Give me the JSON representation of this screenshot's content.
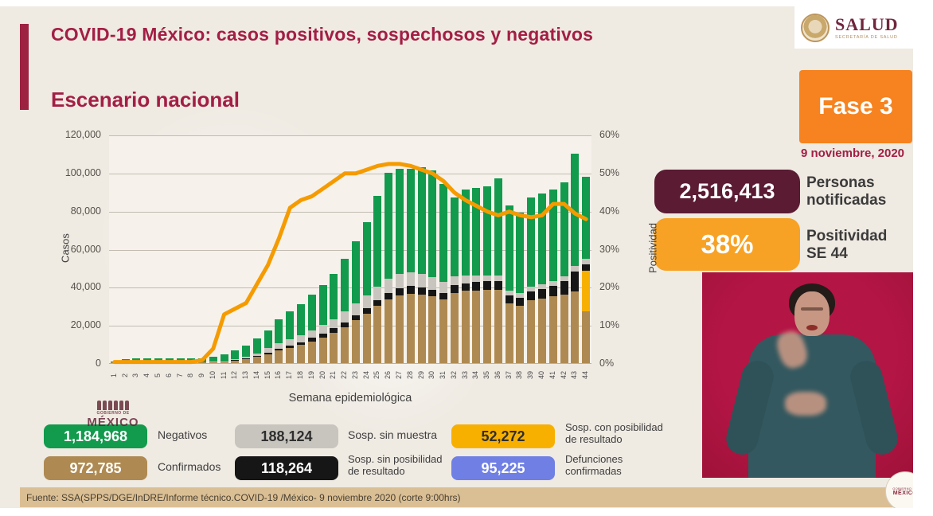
{
  "header": {
    "title": "COVID-19 México: casos positivos, sospechosos y negativos",
    "subtitle": "Escenario nacional"
  },
  "logo": {
    "title": "SALUD",
    "subtitle": "SECRETARÍA DE SALUD"
  },
  "phase": {
    "label": "Fase 3",
    "date": "9 noviembre, 2020",
    "color": "#F6831F"
  },
  "stats": {
    "notified": {
      "value": "2,516,413",
      "label": "Personas\nnotificadas",
      "color": "#5A1B33"
    },
    "positivity": {
      "value": "38%",
      "label": "Positividad\nSE 44",
      "color": "#F7A224"
    }
  },
  "chart_data": {
    "type": "bar",
    "stacked": true,
    "title": "Escenario nacional",
    "xlabel": "Semana epidemiológica",
    "ylabel_left": "Casos",
    "ylabel_right": "Positividad",
    "ylim_left": [
      0,
      120000
    ],
    "ylim_right_pct": [
      0,
      60
    ],
    "yticks_left": [
      "0",
      "20,000",
      "40,000",
      "60,000",
      "80,000",
      "100,000",
      "120,000"
    ],
    "yticks_right": [
      "0%",
      "10%",
      "20%",
      "30%",
      "40%",
      "50%",
      "60%"
    ],
    "grid": true,
    "categories": [
      "1",
      "2",
      "3",
      "4",
      "5",
      "6",
      "7",
      "8",
      "9",
      "10",
      "11",
      "12",
      "13",
      "14",
      "15",
      "16",
      "17",
      "18",
      "19",
      "20",
      "21",
      "22",
      "23",
      "24",
      "25",
      "26",
      "27",
      "28",
      "29",
      "30",
      "31",
      "32",
      "33",
      "34",
      "35",
      "36",
      "37",
      "38",
      "39",
      "40",
      "41",
      "42",
      "43",
      "44"
    ],
    "series": [
      {
        "name": "Confirmados",
        "color": "#AE8A52",
        "values": [
          100,
          100,
          150,
          150,
          150,
          100,
          100,
          100,
          150,
          300,
          600,
          1200,
          2000,
          3200,
          4800,
          6500,
          8000,
          9500,
          11500,
          13500,
          16000,
          19000,
          22500,
          26000,
          30000,
          33500,
          35500,
          36500,
          36000,
          35000,
          33500,
          37000,
          38000,
          38000,
          38500,
          38500,
          31500,
          30000,
          33000,
          34000,
          35000,
          36000,
          37500,
          27000
        ]
      },
      {
        "name": "Sosp. con posibilidad de resultado",
        "color": "#F8B000",
        "values": [
          0,
          0,
          0,
          0,
          0,
          0,
          0,
          0,
          0,
          0,
          0,
          0,
          0,
          0,
          0,
          0,
          0,
          0,
          0,
          0,
          0,
          0,
          0,
          0,
          0,
          0,
          0,
          0,
          0,
          0,
          0,
          0,
          0,
          0,
          0,
          0,
          0,
          0,
          0,
          0,
          0,
          0,
          0,
          21500
        ]
      },
      {
        "name": "Sosp. sin posibilidad de resultado",
        "color": "#161616",
        "values": [
          0,
          0,
          0,
          0,
          0,
          0,
          0,
          0,
          0,
          0,
          0,
          100,
          300,
          500,
          800,
          1000,
          1200,
          1500,
          1800,
          2000,
          2200,
          2500,
          2800,
          3000,
          3200,
          3500,
          3800,
          4000,
          3800,
          3500,
          3500,
          4000,
          4000,
          4500,
          4500,
          4500,
          4000,
          4500,
          4500,
          5000,
          5500,
          7000,
          10500,
          3500
        ]
      },
      {
        "name": "Sosp. sin muestra",
        "color": "#C8C4BE",
        "values": [
          0,
          0,
          0,
          0,
          0,
          0,
          0,
          0,
          0,
          200,
          300,
          600,
          1000,
          1500,
          2200,
          3000,
          3300,
          3500,
          4000,
          4500,
          5000,
          5500,
          6000,
          6500,
          7000,
          7500,
          7500,
          7000,
          7000,
          6500,
          5500,
          4500,
          4000,
          3500,
          3000,
          3000,
          2500,
          2500,
          2500,
          2500,
          2500,
          2500,
          3000,
          3000
        ]
      },
      {
        "name": "Negativos",
        "color": "#129A4D",
        "values": [
          400,
          1600,
          1900,
          2100,
          2100,
          1900,
          1900,
          1900,
          2000,
          2500,
          3600,
          4600,
          5700,
          7800,
          9200,
          12500,
          14500,
          16500,
          18700,
          21000,
          23800,
          28000,
          32700,
          38500,
          47800,
          55500,
          55200,
          54500,
          56200,
          56000,
          51500,
          41500,
          45000,
          46000,
          47000,
          51000,
          45000,
          42000,
          47000,
          47500,
          48000,
          49500,
          59000,
          43000
        ]
      }
    ],
    "line_series": {
      "name": "Positividad",
      "color": "#F59B00",
      "values_pct": [
        0.5,
        0.5,
        0.5,
        0.5,
        0.5,
        0.5,
        0.5,
        0.5,
        1,
        4,
        13,
        14.5,
        16,
        21,
        26,
        33,
        41,
        43,
        44,
        46,
        48,
        50,
        50,
        51,
        52,
        52.5,
        52.5,
        52,
        51,
        50,
        48,
        45,
        43,
        41.5,
        40,
        39,
        40,
        39,
        38.5,
        39,
        42,
        42,
        39.5,
        38
      ]
    }
  },
  "legend": {
    "items": [
      {
        "value": "1,184,968",
        "label": "Negativos",
        "color": "#129A4D",
        "text_color": "#ffffff"
      },
      {
        "value": "188,124",
        "label": "Sosp. sin muestra",
        "color": "#C8C4BE",
        "text_color": "#2e2e2e"
      },
      {
        "value": "52,272",
        "label": "Sosp. con posibilidad\nde resultado",
        "color": "#F8B000",
        "text_color": "#2e2e2e"
      },
      {
        "value": "972,785",
        "label": "Confirmados",
        "color": "#AE8A52",
        "text_color": "#ffffff"
      },
      {
        "value": "118,264",
        "label": "Sosp. sin posibilidad\nde resultado",
        "color": "#161616",
        "text_color": "#ffffff"
      },
      {
        "value": "95,225",
        "label": "Defunciones\nconfirmadas",
        "color": "#6F7FE3",
        "text_color": "#ffffff"
      }
    ]
  },
  "footer": {
    "source": "Fuente: SSA(SPPS/DGE/InDRE/Informe técnico.COVID-19 /México- 9 noviembre 2020 (corte 9:00hrs)"
  },
  "watermark_left": {
    "line1": "GOBIERNO DE",
    "line2": "MÉXICO"
  },
  "watermark_right": {
    "line1": "GOBIERNO DE",
    "line2": "MÉXICO"
  }
}
